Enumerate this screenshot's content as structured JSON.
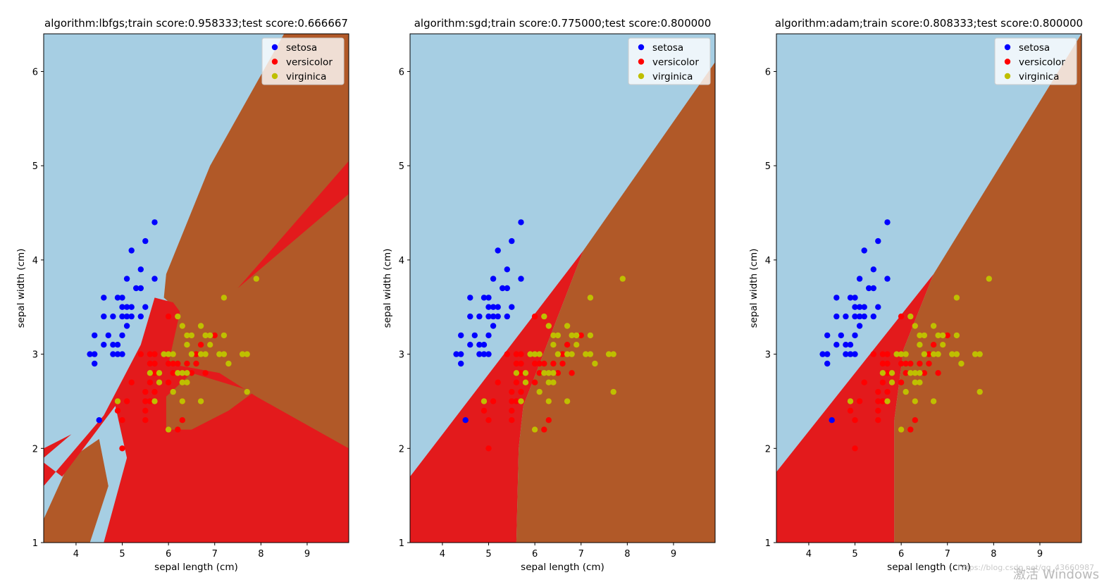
{
  "chart_data": [
    {
      "type": "scatter",
      "title": "algorithm:lbfgs;train score:0.958333;test score:0.666667",
      "xlabel": "sepal length (cm)",
      "ylabel": "sepal width (cm)",
      "xlim": [
        3.3,
        9.9
      ],
      "ylim": [
        1.0,
        6.4
      ],
      "xticks": [
        4,
        5,
        6,
        7,
        8,
        9
      ],
      "yticks": [
        1,
        2,
        3,
        4,
        5,
        6
      ],
      "legend": [
        "setosa",
        "versicolor",
        "virginica"
      ],
      "background": "decision regions (light blue = setosa, red = versicolor, brown = virginica)"
    },
    {
      "type": "scatter",
      "title": "algorithm:sgd;train score:0.775000;test score:0.800000",
      "xlabel": "sepal length (cm)",
      "ylabel": "sepal width (cm)",
      "xlim": [
        3.3,
        9.9
      ],
      "ylim": [
        1.0,
        6.4
      ],
      "xticks": [
        4,
        5,
        6,
        7,
        8,
        9
      ],
      "yticks": [
        1,
        2,
        3,
        4,
        5,
        6
      ],
      "legend": [
        "setosa",
        "versicolor",
        "virginica"
      ],
      "background": "decision regions (light blue = setosa, red = versicolor, brown = virginica)"
    },
    {
      "type": "scatter",
      "title": "algorithm:adam;train score:0.808333;test score:0.800000",
      "xlabel": "sepal length (cm)",
      "ylabel": "sepal width (cm)",
      "xlim": [
        3.3,
        9.9
      ],
      "ylim": [
        1.0,
        6.4
      ],
      "xticks": [
        4,
        5,
        6,
        7,
        8,
        9
      ],
      "yticks": [
        1,
        2,
        3,
        4,
        5,
        6
      ],
      "legend": [
        "setosa",
        "versicolor",
        "virginica"
      ],
      "background": "decision regions (light blue = setosa, red = versicolor, brown = virginica)"
    }
  ],
  "points": {
    "setosa": [
      [
        4.3,
        3.0
      ],
      [
        4.4,
        2.9
      ],
      [
        4.4,
        3.0
      ],
      [
        4.4,
        3.2
      ],
      [
        4.5,
        2.3
      ],
      [
        4.6,
        3.1
      ],
      [
        4.6,
        3.4
      ],
      [
        4.6,
        3.6
      ],
      [
        4.7,
        3.2
      ],
      [
        4.8,
        3.0
      ],
      [
        4.8,
        3.1
      ],
      [
        4.8,
        3.4
      ],
      [
        4.9,
        3.0
      ],
      [
        4.9,
        3.1
      ],
      [
        4.9,
        3.6
      ],
      [
        5.0,
        3.0
      ],
      [
        5.0,
        3.2
      ],
      [
        5.0,
        3.4
      ],
      [
        5.0,
        3.5
      ],
      [
        5.0,
        3.6
      ],
      [
        5.1,
        3.3
      ],
      [
        5.1,
        3.4
      ],
      [
        5.1,
        3.5
      ],
      [
        5.1,
        3.8
      ],
      [
        5.2,
        3.4
      ],
      [
        5.2,
        3.5
      ],
      [
        5.2,
        4.1
      ],
      [
        5.3,
        3.7
      ],
      [
        5.4,
        3.4
      ],
      [
        5.4,
        3.7
      ],
      [
        5.4,
        3.9
      ],
      [
        5.5,
        3.5
      ],
      [
        5.5,
        4.2
      ],
      [
        5.7,
        3.8
      ],
      [
        5.7,
        4.4
      ]
    ],
    "versicolor": [
      [
        4.9,
        2.4
      ],
      [
        5.0,
        2.0
      ],
      [
        5.0,
        2.3
      ],
      [
        5.1,
        2.5
      ],
      [
        5.2,
        2.7
      ],
      [
        5.4,
        3.0
      ],
      [
        5.5,
        2.3
      ],
      [
        5.5,
        2.4
      ],
      [
        5.5,
        2.5
      ],
      [
        5.5,
        2.6
      ],
      [
        5.6,
        2.5
      ],
      [
        5.6,
        2.7
      ],
      [
        5.6,
        2.9
      ],
      [
        5.6,
        3.0
      ],
      [
        5.7,
        2.6
      ],
      [
        5.7,
        2.8
      ],
      [
        5.7,
        2.9
      ],
      [
        5.7,
        3.0
      ],
      [
        5.8,
        2.7
      ],
      [
        5.9,
        3.0
      ],
      [
        6.0,
        2.2
      ],
      [
        6.0,
        2.7
      ],
      [
        6.0,
        2.9
      ],
      [
        6.0,
        3.4
      ],
      [
        6.1,
        2.8
      ],
      [
        6.1,
        2.9
      ],
      [
        6.1,
        3.0
      ],
      [
        6.2,
        2.2
      ],
      [
        6.2,
        2.9
      ],
      [
        6.3,
        2.3
      ],
      [
        6.3,
        2.5
      ],
      [
        6.3,
        3.3
      ],
      [
        6.4,
        2.9
      ],
      [
        6.4,
        3.2
      ],
      [
        6.5,
        2.8
      ],
      [
        6.6,
        2.9
      ],
      [
        6.6,
        3.0
      ],
      [
        6.7,
        3.0
      ],
      [
        6.7,
        3.1
      ],
      [
        6.8,
        2.8
      ],
      [
        6.9,
        3.1
      ],
      [
        7.0,
        3.2
      ]
    ],
    "virginica": [
      [
        4.9,
        2.5
      ],
      [
        5.6,
        2.8
      ],
      [
        5.7,
        2.5
      ],
      [
        5.8,
        2.7
      ],
      [
        5.8,
        2.8
      ],
      [
        5.9,
        3.0
      ],
      [
        6.0,
        2.2
      ],
      [
        6.0,
        3.0
      ],
      [
        6.1,
        2.6
      ],
      [
        6.1,
        3.0
      ],
      [
        6.2,
        2.8
      ],
      [
        6.2,
        3.4
      ],
      [
        6.3,
        2.5
      ],
      [
        6.3,
        2.7
      ],
      [
        6.3,
        2.8
      ],
      [
        6.3,
        3.3
      ],
      [
        6.4,
        2.7
      ],
      [
        6.4,
        2.8
      ],
      [
        6.4,
        3.1
      ],
      [
        6.4,
        3.2
      ],
      [
        6.5,
        3.0
      ],
      [
        6.5,
        3.2
      ],
      [
        6.7,
        2.5
      ],
      [
        6.7,
        3.0
      ],
      [
        6.7,
        3.3
      ],
      [
        6.8,
        3.0
      ],
      [
        6.8,
        3.2
      ],
      [
        6.9,
        3.1
      ],
      [
        6.9,
        3.2
      ],
      [
        7.1,
        3.0
      ],
      [
        7.2,
        3.0
      ],
      [
        7.2,
        3.2
      ],
      [
        7.2,
        3.6
      ],
      [
        7.3,
        2.9
      ],
      [
        7.6,
        3.0
      ],
      [
        7.7,
        2.6
      ],
      [
        7.7,
        3.0
      ],
      [
        7.9,
        3.8
      ]
    ]
  },
  "legend_colors": {
    "setosa": "#0000ff",
    "versicolor": "#ff0000",
    "virginica": "#bfbf00"
  },
  "region_colors": {
    "setosa": "#a6cee3",
    "versicolor": "#e31a1c",
    "virginica": "#b15928"
  },
  "watermark": {
    "text": "激活 Windows",
    "url_text": "https://blog.csdn.net/qq_43660987"
  }
}
